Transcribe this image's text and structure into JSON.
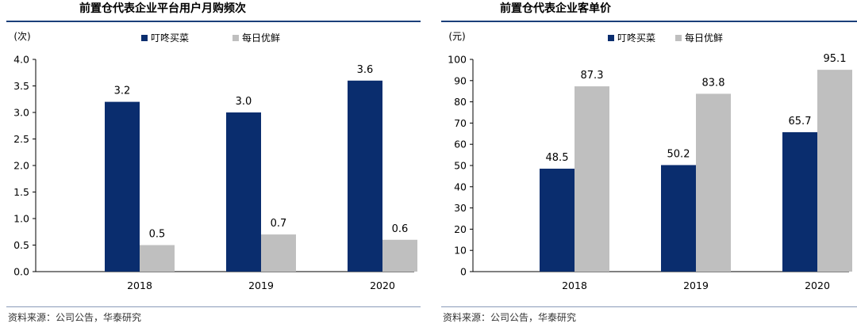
{
  "charts": [
    {
      "title": "前置仓代表企业平台用户月购频次",
      "source": "资料来源：公司公告，华泰研究",
      "chart_data": {
        "type": "bar",
        "unit_label": "(次)",
        "categories": [
          "2018",
          "2019",
          "2020"
        ],
        "series": [
          {
            "name": "叮咚买菜",
            "values": [
              3.2,
              3.0,
              3.6
            ],
            "labels": [
              "3.2",
              "3.0",
              "3.6"
            ],
            "color": "#0a2d6e"
          },
          {
            "name": "每日优鲜",
            "values": [
              0.5,
              0.7,
              0.6
            ],
            "labels": [
              "0.5",
              "0.7",
              "0.6"
            ],
            "color": "#bfbfbf"
          }
        ],
        "ylim": [
          0,
          4.0
        ],
        "yticks": [
          "0.0",
          "0.5",
          "1.0",
          "1.5",
          "2.0",
          "2.5",
          "3.0",
          "3.5",
          "4.0"
        ],
        "legend_position": "top"
      }
    },
    {
      "title": "前置仓代表企业客单价",
      "source": "资料来源：公司公告，华泰研究",
      "chart_data": {
        "type": "bar",
        "unit_label": "(元)",
        "categories": [
          "2018",
          "2019",
          "2020"
        ],
        "series": [
          {
            "name": "叮咚买菜",
            "values": [
              48.5,
              50.2,
              65.7
            ],
            "labels": [
              "48.5",
              "50.2",
              "65.7"
            ],
            "color": "#0a2d6e"
          },
          {
            "name": "每日优鲜",
            "values": [
              87.3,
              83.8,
              95.1
            ],
            "labels": [
              "87.3",
              "83.8",
              "95.1"
            ],
            "color": "#bfbfbf"
          }
        ],
        "ylim": [
          0,
          100
        ],
        "yticks": [
          "0",
          "10",
          "20",
          "30",
          "40",
          "50",
          "60",
          "70",
          "80",
          "90",
          "100"
        ],
        "legend_position": "top"
      }
    }
  ]
}
